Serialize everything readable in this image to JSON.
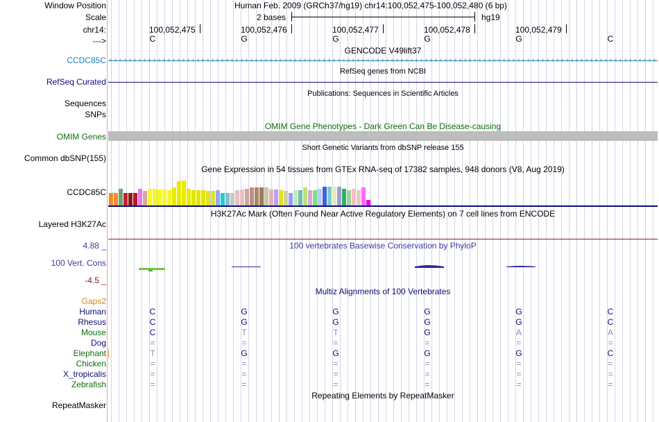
{
  "colors": {
    "ccdc85c_gencode": "#1c7eb7",
    "navy": "#0c0c78",
    "omim_green": "#0e6c0e",
    "conservation_blue": "#3a3a9c",
    "conservation_neg": "#8b1a1a",
    "gaps_orange": "#d4880c",
    "grid_line": "#d4d4e6",
    "left_border": "#e8a6a6",
    "omim_bar": "#bdbdbd"
  },
  "header": {
    "window_position_label": "Window Position",
    "window_position_value": "Human Feb. 2009 (GRCh37/hg19)   chr14:100,052,475-100,052,480 (6 bp)",
    "scale_label": "Scale",
    "scale_value": "2 bases",
    "scale_assembly": "hg19",
    "chrom_label": "chr14:",
    "positions": [
      "100,052,475",
      "100,052,476",
      "100,052,477",
      "100,052,478",
      "100,052,479"
    ],
    "strand_label": "--->",
    "bases": [
      "C",
      "G",
      "G",
      "G",
      "G",
      "C"
    ]
  },
  "tracks": {
    "gencode": {
      "title": "GENCODE V49lift37",
      "label": "CCDC85C",
      "icon": "arrow-left-chevrons"
    },
    "refseq": {
      "title": "RefSeq genes from NCBI",
      "label": "RefSeq Curated"
    },
    "publications": {
      "title": "Publications: Sequences in Scientific Articles",
      "label1": "Sequences",
      "label2": "SNPs"
    },
    "omim": {
      "title": "OMIM Gene Phenotypes - Dark Green Can Be Disease-causing",
      "label": "OMIM Genes"
    },
    "dbsnp": {
      "title": "Short Genetic Variants from dbSNP release 155",
      "label": "Common dbSNP(155)"
    },
    "gtex": {
      "title": "Gene Expression in 54 tissues from GTEx RNA-seq of 17382 samples, 948 donors (V8, Aug 2019)",
      "label": "CCDC85C",
      "bar_levels": [
        0.42,
        0.42,
        0.55,
        0.42,
        0.4,
        0.42,
        0.55,
        0.48,
        0.55,
        0.55,
        0.52,
        0.52,
        0.5,
        0.58,
        0.8,
        0.82,
        0.55,
        0.5,
        0.5,
        0.5,
        0.48,
        0.48,
        0.5,
        0.42,
        0.4,
        0.42,
        0.5,
        0.52,
        0.55,
        0.58,
        0.58,
        0.58,
        0.58,
        0.52,
        0.52,
        0.5,
        0.48,
        0.42,
        0.5,
        0.5,
        0.58,
        0.5,
        0.5,
        0.55,
        0.62,
        0.62,
        0.62,
        0.62,
        0.55,
        0.5,
        0.55,
        0.5,
        0.58,
        0.18
      ],
      "bar_colors": [
        "#f08a2a",
        "#f08a2a",
        "#6fa06f",
        "#c41e3a",
        "#8b1a1a",
        "#b5172e",
        "#e17ee0",
        "#d8a5a5",
        "#f6f62a",
        "#f6f62a",
        "#f6f62a",
        "#f6f62a",
        "#f6f62a",
        "#eaea00",
        "#eaea00",
        "#eaea00",
        "#eaea00",
        "#e4e400",
        "#e4e400",
        "#e4e400",
        "#e2e21e",
        "#d2e82e",
        "#a0a0ff",
        "#19cfcf",
        "#8ab8d8",
        "#c8c8c8",
        "#e8c0c0",
        "#e8c0c0",
        "#c8a8a8",
        "#c09080",
        "#a88868",
        "#9c7c5c",
        "#c8c8a8",
        "#e8b0b0",
        "#b8a0ff",
        "#e0e020",
        "#d0d0a0",
        "#9a9aff",
        "#b8f0b8",
        "#70c0a0",
        "#c0e080",
        "#d8a8d8",
        "#80e080",
        "#b0d0ff",
        "#4060e0",
        "#78d0c8",
        "#e8e8c0",
        "#a0a0d0",
        "#30b060",
        "#a0d0a0",
        "#f2c0c0",
        "#e8c8c8",
        "#ff66ff",
        "#f000f0"
      ]
    },
    "h3k27ac": {
      "title": "H3K27Ac Mark (Often Found Near Active Regulatory Elements) on 7 cell lines from ENCODE",
      "label": "Layered H3K27Ac"
    },
    "conservation": {
      "title": "100 vertebrates Basewise Conservation by PhyloP",
      "label": "100 Vert. Cons",
      "max": "4.88 _",
      "min": "-4.5 _"
    },
    "multiz": {
      "title": "Multiz Alignments of 100 Vertebrates",
      "gaps_label": "Gaps2",
      "species": [
        {
          "name": "Human",
          "color": "#0c0c78",
          "bases": [
            "C",
            "G",
            "G",
            "G",
            "G",
            "C"
          ]
        },
        {
          "name": "Rhesus",
          "color": "#0c0c78",
          "bases": [
            "C",
            "G",
            "G",
            "G",
            "G",
            "C"
          ]
        },
        {
          "name": "Mouse",
          "color": "#0e6c0e",
          "bases": [
            "C",
            "T",
            "T",
            "G",
            "A",
            "A"
          ]
        },
        {
          "name": "Dog",
          "color": "#0c0c78",
          "bases": [
            "=",
            "=",
            "=",
            "=",
            "=",
            "="
          ]
        },
        {
          "name": "Elephant",
          "color": "#0e6c0e",
          "bases": [
            "T",
            "G",
            "G",
            "G",
            "G",
            "C"
          ]
        },
        {
          "name": "Chicken",
          "color": "#0e6c0e",
          "bases": [
            "=",
            "=",
            "=",
            "=",
            "=",
            "="
          ]
        },
        {
          "name": "X_tropicalis",
          "color": "#0c0c78",
          "bases": [
            "=",
            "=",
            "=",
            "=",
            "=",
            "="
          ]
        },
        {
          "name": "Zebrafish",
          "color": "#0e6c0e",
          "bases": [
            "=",
            "=",
            "=",
            "=",
            "=",
            "="
          ]
        }
      ]
    },
    "repeatmasker": {
      "title": "Repeating Elements by RepeatMasker",
      "label": "RepeatMasker"
    }
  }
}
